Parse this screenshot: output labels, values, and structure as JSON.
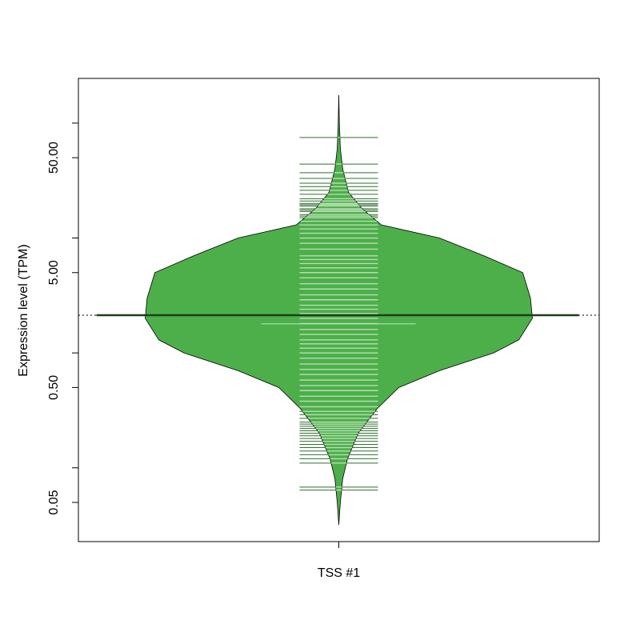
{
  "chart_data": {
    "type": "beanplot",
    "ylabel": "Expression level (TPM)",
    "categories": [
      "TSS #1"
    ],
    "log_y": true,
    "ylim": [
      0.0228,
      245
    ],
    "yticks": [
      0.05,
      {
        "value": 0.5,
        "label": "0.50"
      },
      {
        "value": 5,
        "label": "5.00"
      },
      {
        "value": 50,
        "label": "50.00"
      }
    ],
    "yticks_minor": [
      0.1,
      1,
      10,
      100
    ],
    "fill_color": "#4daf4a",
    "line_color": "#2f6f2f",
    "inner_line_color": "#b5deb2",
    "beanline": 2.13,
    "overall_line": 2.13,
    "median": 1.79,
    "density": {
      "y": [
        0.032,
        0.05,
        0.08,
        0.12,
        0.2,
        0.33,
        0.5,
        0.7,
        1,
        1.3,
        2,
        3,
        5,
        7,
        10,
        13,
        18,
        25,
        40,
        60,
        100,
        175
      ],
      "width": [
        0,
        0.008,
        0.02,
        0.045,
        0.1,
        0.2,
        0.31,
        0.52,
        0.8,
        0.93,
        1.0,
        0.99,
        0.95,
        0.75,
        0.52,
        0.22,
        0.12,
        0.05,
        0.02,
        0.008,
        0.003,
        0
      ]
    },
    "observations": [
      75,
      44,
      37,
      33,
      30,
      28,
      26,
      24,
      22,
      21,
      20,
      19.5,
      19,
      18,
      17.5,
      17,
      16,
      15.5,
      15,
      14,
      13,
      12,
      11,
      10,
      9,
      8,
      7,
      6.5,
      6,
      5.5,
      5,
      4.5,
      4,
      3.6,
      3.2,
      2.9,
      2.6,
      2.4,
      2.2,
      2.0,
      1.8,
      1.6,
      1.45,
      1.3,
      1.2,
      1.1,
      1.0,
      0.9,
      0.8,
      0.72,
      0.65,
      0.58,
      0.52,
      0.47,
      0.42,
      0.38,
      0.34,
      0.31,
      0.29,
      0.27,
      0.25,
      0.24,
      0.23,
      0.22,
      0.21,
      0.2,
      0.19,
      0.18,
      0.17,
      0.16,
      0.15,
      0.14,
      0.13,
      0.12,
      0.11,
      0.068,
      0.064
    ]
  }
}
